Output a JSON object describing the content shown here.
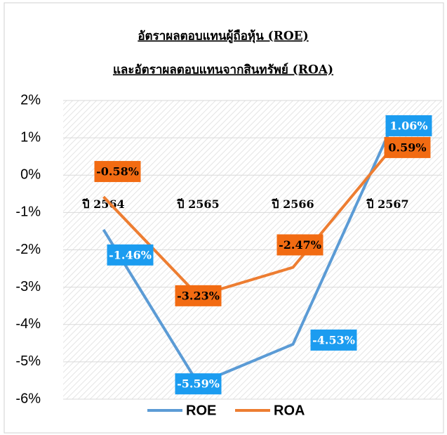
{
  "chart_data": {
    "type": "line",
    "title": [
      "อัตราผลตอบแทนผู้ถือหุ้น (ROE)",
      "และอัตราผลตอบแทนจากสินทรัพย์ (ROA)"
    ],
    "categories": [
      "ปี 2564",
      "ปี 2565",
      "ปี 2566",
      "ปี 2567"
    ],
    "series": [
      {
        "name": "ROE",
        "color": "#5b9bd5",
        "label_color": "#1b9cf0",
        "label_text_color": "#ffffff",
        "values": [
          -1.46,
          -5.59,
          -4.53,
          1.06
        ],
        "value_labels": [
          "-1.46%",
          "-5.59%",
          "-4.53%",
          "1.06%"
        ]
      },
      {
        "name": "ROA",
        "color": "#ed7d31",
        "label_color": "#f26b12",
        "label_text_color": "#000000",
        "values": [
          -0.58,
          -3.23,
          -2.47,
          0.59
        ],
        "value_labels": [
          "-0.58%",
          "-3.23%",
          "-2.47%",
          "0.59%"
        ]
      }
    ],
    "ylim": [
      -6,
      2
    ],
    "yticks": [
      {
        "value": 2,
        "label": "2%"
      },
      {
        "value": 1,
        "label": "1%"
      },
      {
        "value": 0,
        "label": "0%"
      },
      {
        "value": -1,
        "label": "-1%"
      },
      {
        "value": -2,
        "label": "-2%"
      },
      {
        "value": -3,
        "label": "-3%"
      },
      {
        "value": -4,
        "label": "-4%"
      },
      {
        "value": -5,
        "label": "-5%"
      },
      {
        "value": -6,
        "label": "-6%"
      }
    ],
    "grid": true,
    "legend": "bottom"
  }
}
